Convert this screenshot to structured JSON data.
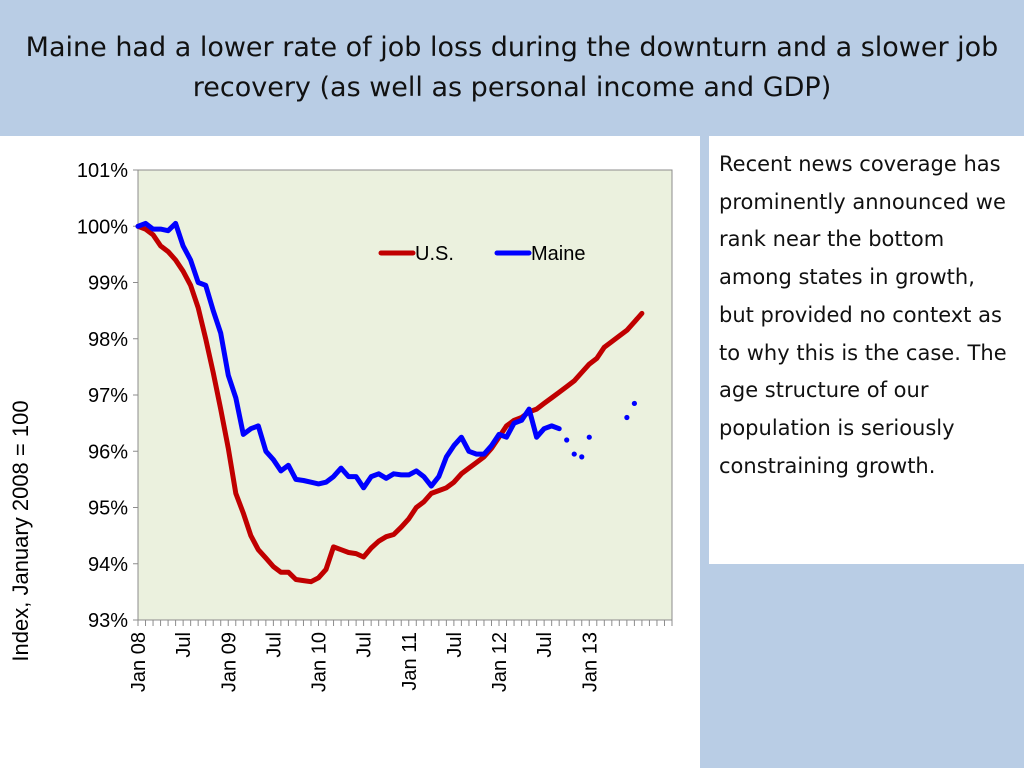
{
  "slide": {
    "title": "Maine had a lower rate of job loss during the downturn and a slower job recovery (as well as personal income and GDP)",
    "side_text": "Recent news coverage has prominently announced we rank near the bottom among states in growth, but provided no context as to why this is the case. The age structure of our population is seriously constraining growth.",
    "colors": {
      "background": "#b9cde5",
      "panel": "#ffffff",
      "plot_area": "#ebf1de"
    }
  },
  "chart_data": {
    "type": "line",
    "title": "",
    "xlabel": "",
    "ylabel": "Index, January 2008 = 100",
    "ylim": [
      93,
      101
    ],
    "yticks": [
      93,
      94,
      95,
      96,
      97,
      98,
      99,
      100,
      101
    ],
    "ytick_labels": [
      "93%",
      "94%",
      "95%",
      "96%",
      "97%",
      "98%",
      "99%",
      "100%",
      "101%"
    ],
    "xlim": [
      0,
      71
    ],
    "xticks": [
      {
        "month_index": 0,
        "label": "Jan 08"
      },
      {
        "month_index": 6,
        "label": "Jul"
      },
      {
        "month_index": 12,
        "label": "Jan 09"
      },
      {
        "month_index": 18,
        "label": "Jul"
      },
      {
        "month_index": 24,
        "label": "Jan 10"
      },
      {
        "month_index": 30,
        "label": "Jul"
      },
      {
        "month_index": 36,
        "label": "Jan 11"
      },
      {
        "month_index": 42,
        "label": "Jul"
      },
      {
        "month_index": 48,
        "label": "Jan 12"
      },
      {
        "month_index": 54,
        "label": "Jul"
      },
      {
        "month_index": 60,
        "label": "Jan 13"
      }
    ],
    "grid": false,
    "legend": "top-right",
    "series": [
      {
        "name": "U.S.",
        "color": "#c00000",
        "values": [
          100.0,
          99.95,
          99.85,
          99.65,
          99.55,
          99.4,
          99.2,
          98.95,
          98.55,
          98.0,
          97.4,
          96.75,
          96.05,
          95.25,
          94.9,
          94.5,
          94.25,
          94.1,
          93.95,
          93.85,
          93.85,
          93.72,
          93.7,
          93.68,
          93.75,
          93.9,
          94.3,
          94.25,
          94.2,
          94.18,
          94.12,
          94.28,
          94.4,
          94.48,
          94.52,
          94.65,
          94.8,
          95.0,
          95.1,
          95.25,
          95.3,
          95.35,
          95.45,
          95.6,
          95.7,
          95.8,
          95.9,
          96.05,
          96.25,
          96.45,
          96.55,
          96.6,
          96.7,
          96.75,
          96.85,
          96.95,
          97.05,
          97.15,
          97.25,
          97.4,
          97.55,
          97.65,
          97.85,
          97.95,
          98.05,
          98.15,
          98.3,
          98.45
        ]
      },
      {
        "name": "Maine",
        "color": "#0000ff",
        "values": [
          100.0,
          100.05,
          99.95,
          99.95,
          99.92,
          100.05,
          99.65,
          99.4,
          99.0,
          98.95,
          98.5,
          98.1,
          97.35,
          96.95,
          96.3,
          96.4,
          96.45,
          96.0,
          95.85,
          95.65,
          95.75,
          95.5,
          95.48,
          95.45,
          95.42,
          95.45,
          95.55,
          95.7,
          95.55,
          95.55,
          95.35,
          95.55,
          95.6,
          95.52,
          95.6,
          95.58,
          95.58,
          95.65,
          95.55,
          95.38,
          95.55,
          95.9,
          96.1,
          96.25,
          96.0,
          95.95,
          95.95,
          96.1,
          96.3,
          96.25,
          96.5,
          96.55,
          96.75,
          96.25,
          96.4,
          96.45,
          96.4,
          96.2,
          95.95,
          95.9,
          96.25,
          null,
          null,
          null,
          null,
          96.6,
          96.85
        ],
        "dotted_from_index": 56
      }
    ]
  }
}
